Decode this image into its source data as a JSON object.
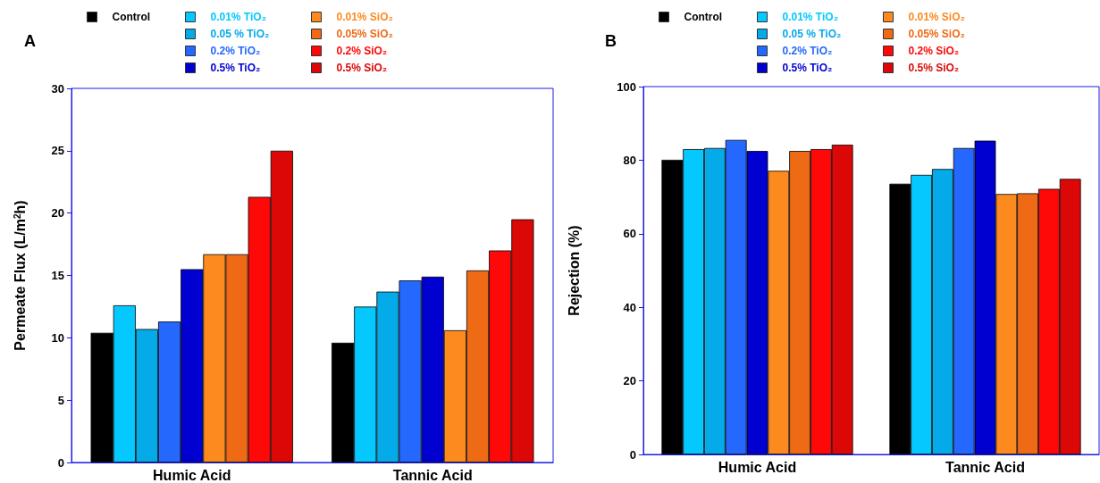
{
  "chart_data": [
    {
      "type": "bar",
      "title": "A",
      "ylabel": "Permeate Flux (L/m$^{2}$h)",
      "categories": [
        "Humic Acid",
        "Tannic Acid"
      ],
      "ylim": [
        0,
        30
      ],
      "yticks": [
        0,
        5,
        10,
        15,
        20,
        25,
        30
      ],
      "grid": false,
      "legend": "top",
      "series": [
        {
          "name": "Control",
          "color": "#000000",
          "values": [
            10.4,
            9.6
          ]
        },
        {
          "name": "0.01% TiO₂",
          "color": "#05c8fe",
          "values": [
            12.6,
            12.5
          ]
        },
        {
          "name": "0.05 % TiO₂",
          "color": "#05aae8",
          "values": [
            10.7,
            13.7
          ]
        },
        {
          "name": "0.2% TiO₂",
          "color": "#2468fe",
          "values": [
            11.3,
            14.6
          ]
        },
        {
          "name": "0.5% TiO₂",
          "color": "#0000d0",
          "values": [
            15.5,
            14.9
          ]
        },
        {
          "name": "0.01% SiO₂",
          "color": "#fc8a1e",
          "values": [
            16.7,
            10.6
          ]
        },
        {
          "name": "0.05% SiO₂",
          "color": "#ee6a14",
          "values": [
            16.7,
            15.4
          ]
        },
        {
          "name": "0.2% SiO₂",
          "color": "#fe0808",
          "values": [
            21.3,
            17.0
          ]
        },
        {
          "name": "0.5% SiO₂",
          "color": "#dc0808",
          "values": [
            25.0,
            19.5
          ]
        }
      ]
    },
    {
      "type": "bar",
      "title": "B",
      "ylabel": "Rejection (%)",
      "categories": [
        "Humic Acid",
        "Tannic Acid"
      ],
      "ylim": [
        0,
        100
      ],
      "yticks": [
        0,
        20,
        40,
        60,
        80,
        100
      ],
      "grid": false,
      "legend": "top",
      "series": [
        {
          "name": "Control",
          "color": "#000000",
          "values": [
            80.1,
            73.6
          ]
        },
        {
          "name": "0.01% TiO₂",
          "color": "#05c8fe",
          "values": [
            83.0,
            76.0
          ]
        },
        {
          "name": "0.05 % TiO₂",
          "color": "#05aae8",
          "values": [
            83.3,
            77.6
          ]
        },
        {
          "name": "0.2% TiO₂",
          "color": "#2468fe",
          "values": [
            85.5,
            83.3
          ]
        },
        {
          "name": "0.5% TiO₂",
          "color": "#0000d0",
          "values": [
            82.5,
            85.3
          ]
        },
        {
          "name": "0.01% SiO₂",
          "color": "#fc8a1e",
          "values": [
            77.1,
            70.8
          ]
        },
        {
          "name": "0.05% SiO₂",
          "color": "#ee6a14",
          "values": [
            82.5,
            71.0
          ]
        },
        {
          "name": "0.2% SiO₂",
          "color": "#fe0808",
          "values": [
            83.0,
            72.2
          ]
        },
        {
          "name": "0.5% SiO₂",
          "color": "#dc0808",
          "values": [
            84.2,
            74.9
          ]
        }
      ]
    }
  ]
}
